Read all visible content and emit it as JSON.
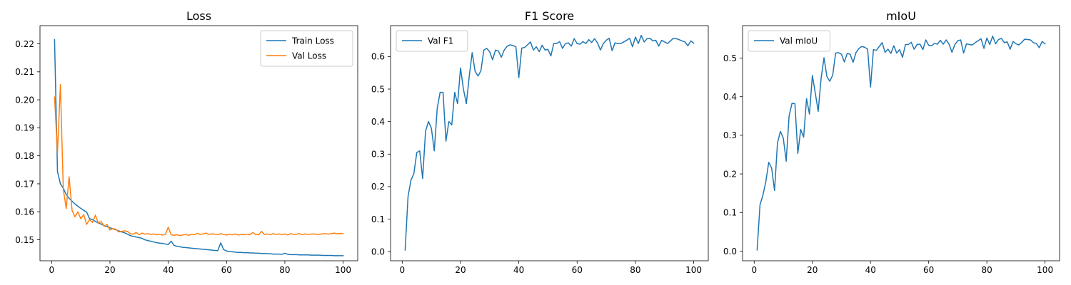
{
  "figure": {
    "background": "#ffffff"
  },
  "chart_data": [
    {
      "type": "line",
      "title": "Loss",
      "xlabel": "",
      "ylabel": "",
      "xlim": [
        -4,
        105
      ],
      "ylim": [
        0.1425,
        0.2265
      ],
      "xticks": [
        0,
        20,
        40,
        60,
        80,
        100
      ],
      "yticks": [
        0.15,
        0.16,
        0.17,
        0.18,
        0.19,
        0.2,
        0.21,
        0.22
      ],
      "ytick_labels": [
        "0.15",
        "0.16",
        "0.17",
        "0.18",
        "0.19",
        "0.20",
        "0.21",
        "0.22"
      ],
      "grid": false,
      "legend_position": "top-right",
      "x_start": 1,
      "series": [
        {
          "name": "Train Loss",
          "color": "#1f77b4",
          "values": [
            0.2215,
            0.1743,
            0.17,
            0.1684,
            0.1662,
            0.1648,
            0.1638,
            0.1628,
            0.162,
            0.1612,
            0.1605,
            0.1599,
            0.1576,
            0.1572,
            0.1566,
            0.156,
            0.1556,
            0.1551,
            0.1547,
            0.1543,
            0.1539,
            0.1536,
            0.1532,
            0.1528,
            0.1525,
            0.152,
            0.1515,
            0.1512,
            0.151,
            0.1508,
            0.1505,
            0.15,
            0.1497,
            0.1495,
            0.1492,
            0.149,
            0.1488,
            0.1487,
            0.1485,
            0.1483,
            0.1495,
            0.148,
            0.1477,
            0.1475,
            0.1473,
            0.1472,
            0.1471,
            0.147,
            0.1469,
            0.1468,
            0.1467,
            0.1466,
            0.1465,
            0.1464,
            0.1463,
            0.1462,
            0.1461,
            0.1489,
            0.1465,
            0.146,
            0.1458,
            0.1457,
            0.1456,
            0.1455,
            0.1455,
            0.1454,
            0.1454,
            0.1453,
            0.1453,
            0.1452,
            0.1452,
            0.1451,
            0.1451,
            0.145,
            0.145,
            0.1449,
            0.1449,
            0.1449,
            0.1448,
            0.1452,
            0.1448,
            0.1447,
            0.1447,
            0.1447,
            0.1446,
            0.1446,
            0.1446,
            0.1446,
            0.1445,
            0.1445,
            0.1445,
            0.1445,
            0.1444,
            0.1444,
            0.1444,
            0.1444,
            0.1443,
            0.1443,
            0.1443,
            0.1443
          ]
        },
        {
          "name": "Val Loss",
          "color": "#ff7f0e",
          "values": [
            0.201,
            0.181,
            0.2055,
            0.168,
            0.1612,
            0.1725,
            0.1605,
            0.1582,
            0.16,
            0.1575,
            0.159,
            0.1555,
            0.1572,
            0.1562,
            0.1588,
            0.156,
            0.1565,
            0.1548,
            0.1555,
            0.1535,
            0.154,
            0.1538,
            0.1528,
            0.153,
            0.1532,
            0.153,
            0.1522,
            0.152,
            0.1526,
            0.1518,
            0.1524,
            0.152,
            0.1522,
            0.1519,
            0.1521,
            0.1518,
            0.152,
            0.1517,
            0.1519,
            0.1545,
            0.1518,
            0.1516,
            0.1518,
            0.1515,
            0.1517,
            0.1519,
            0.1516,
            0.152,
            0.1518,
            0.1523,
            0.1519,
            0.1521,
            0.1524,
            0.1519,
            0.1521,
            0.152,
            0.1518,
            0.1522,
            0.1519,
            0.1517,
            0.152,
            0.1518,
            0.1521,
            0.1517,
            0.1519,
            0.1518,
            0.152,
            0.1518,
            0.1526,
            0.1519,
            0.1518,
            0.153,
            0.1519,
            0.1521,
            0.1518,
            0.1522,
            0.1519,
            0.1521,
            0.1518,
            0.1521,
            0.1517,
            0.1522,
            0.1519,
            0.152,
            0.1522,
            0.1518,
            0.1521,
            0.1519,
            0.152,
            0.1521,
            0.1519,
            0.152,
            0.1521,
            0.1522,
            0.152,
            0.1522,
            0.1524,
            0.1521,
            0.1523,
            0.1522
          ]
        }
      ]
    },
    {
      "type": "line",
      "title": "F1 Score",
      "xlabel": "",
      "ylabel": "",
      "xlim": [
        -4,
        105
      ],
      "ylim": [
        -0.028,
        0.695
      ],
      "xticks": [
        0,
        20,
        40,
        60,
        80,
        100
      ],
      "yticks": [
        0.0,
        0.1,
        0.2,
        0.3,
        0.4,
        0.5,
        0.6
      ],
      "ytick_labels": [
        "0.0",
        "0.1",
        "0.2",
        "0.3",
        "0.4",
        "0.5",
        "0.6"
      ],
      "grid": false,
      "legend_position": "top-left",
      "x_start": 1,
      "series": [
        {
          "name": "Val F1",
          "color": "#1f77b4",
          "values": [
            0.005,
            0.17,
            0.22,
            0.24,
            0.305,
            0.31,
            0.225,
            0.37,
            0.4,
            0.38,
            0.31,
            0.44,
            0.49,
            0.49,
            0.34,
            0.4,
            0.39,
            0.49,
            0.455,
            0.565,
            0.5,
            0.455,
            0.54,
            0.612,
            0.555,
            0.54,
            0.556,
            0.62,
            0.625,
            0.615,
            0.59,
            0.62,
            0.617,
            0.598,
            0.62,
            0.632,
            0.636,
            0.634,
            0.63,
            0.535,
            0.626,
            0.628,
            0.636,
            0.645,
            0.62,
            0.63,
            0.615,
            0.635,
            0.62,
            0.622,
            0.602,
            0.64,
            0.64,
            0.646,
            0.625,
            0.64,
            0.642,
            0.632,
            0.655,
            0.64,
            0.638,
            0.646,
            0.64,
            0.652,
            0.643,
            0.655,
            0.642,
            0.62,
            0.64,
            0.65,
            0.656,
            0.618,
            0.642,
            0.64,
            0.64,
            0.645,
            0.65,
            0.656,
            0.63,
            0.66,
            0.64,
            0.665,
            0.645,
            0.655,
            0.656,
            0.648,
            0.65,
            0.632,
            0.65,
            0.645,
            0.64,
            0.648,
            0.656,
            0.655,
            0.652,
            0.648,
            0.645,
            0.633,
            0.648,
            0.641
          ]
        }
      ]
    },
    {
      "type": "line",
      "title": "mIoU",
      "xlabel": "",
      "ylabel": "",
      "xlim": [
        -4,
        105
      ],
      "ylim": [
        -0.025,
        0.584
      ],
      "xticks": [
        0,
        20,
        40,
        60,
        80,
        100
      ],
      "yticks": [
        0.0,
        0.1,
        0.2,
        0.3,
        0.4,
        0.5
      ],
      "ytick_labels": [
        "0.0",
        "0.1",
        "0.2",
        "0.3",
        "0.4",
        "0.5"
      ],
      "grid": false,
      "legend_position": "top-left",
      "x_start": 1,
      "series": [
        {
          "name": "Val mIoU",
          "color": "#1f77b4",
          "values": [
            0.003,
            0.12,
            0.145,
            0.18,
            0.23,
            0.215,
            0.157,
            0.28,
            0.31,
            0.293,
            0.233,
            0.35,
            0.383,
            0.382,
            0.253,
            0.315,
            0.295,
            0.395,
            0.355,
            0.455,
            0.41,
            0.362,
            0.447,
            0.501,
            0.452,
            0.44,
            0.456,
            0.513,
            0.514,
            0.51,
            0.49,
            0.512,
            0.51,
            0.489,
            0.514,
            0.525,
            0.53,
            0.528,
            0.523,
            0.425,
            0.522,
            0.52,
            0.53,
            0.54,
            0.515,
            0.523,
            0.512,
            0.532,
            0.513,
            0.522,
            0.502,
            0.535,
            0.535,
            0.541,
            0.523,
            0.535,
            0.536,
            0.522,
            0.547,
            0.533,
            0.532,
            0.538,
            0.536,
            0.546,
            0.536,
            0.547,
            0.536,
            0.515,
            0.535,
            0.545,
            0.547,
            0.513,
            0.537,
            0.535,
            0.534,
            0.54,
            0.545,
            0.55,
            0.525,
            0.552,
            0.535,
            0.557,
            0.537,
            0.548,
            0.551,
            0.54,
            0.542,
            0.523,
            0.543,
            0.537,
            0.534,
            0.541,
            0.549,
            0.548,
            0.547,
            0.54,
            0.538,
            0.527,
            0.543,
            0.537
          ]
        }
      ]
    }
  ]
}
